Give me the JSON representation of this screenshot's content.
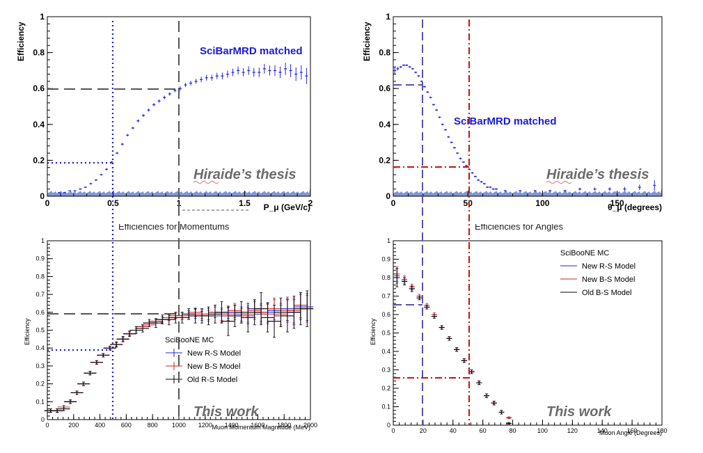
{
  "chart_data": [
    {
      "id": "top_momentum",
      "type": "scatter",
      "title": "",
      "xlabel": "P_μ (GeV/c)",
      "ylabel": "Efficiency",
      "xlim": [
        0,
        2
      ],
      "ylim": [
        0,
        1
      ],
      "xticks": [
        "0",
        "0.5",
        "1",
        "1.5",
        "2"
      ],
      "yticks": [
        "0",
        "0.2",
        "0.4",
        "0.6",
        "0.8",
        "1"
      ],
      "legend": "SciBarMRD matched",
      "legend_color": "#1a1adc",
      "watermark": "Hiraide’s thesis",
      "caption": "Efficiencies for Momentums",
      "series": [
        {
          "name": "SciBarMRD matched",
          "color": "#2222ee",
          "x": [
            0.09,
            0.13,
            0.17,
            0.21,
            0.25,
            0.29,
            0.33,
            0.37,
            0.41,
            0.45,
            0.49,
            0.53,
            0.57,
            0.61,
            0.65,
            0.69,
            0.73,
            0.77,
            0.81,
            0.85,
            0.89,
            0.93,
            0.97,
            1.01,
            1.05,
            1.09,
            1.13,
            1.17,
            1.21,
            1.25,
            1.29,
            1.33,
            1.37,
            1.41,
            1.45,
            1.49,
            1.53,
            1.57,
            1.61,
            1.65,
            1.69,
            1.73,
            1.77,
            1.81,
            1.85,
            1.89,
            1.93,
            1.97
          ],
          "y": [
            0.02,
            0.02,
            0.03,
            0.03,
            0.04,
            0.05,
            0.07,
            0.09,
            0.12,
            0.15,
            0.19,
            0.24,
            0.29,
            0.34,
            0.38,
            0.42,
            0.45,
            0.48,
            0.51,
            0.53,
            0.55,
            0.57,
            0.59,
            0.6,
            0.62,
            0.63,
            0.64,
            0.65,
            0.66,
            0.66,
            0.67,
            0.67,
            0.68,
            0.69,
            0.7,
            0.69,
            0.7,
            0.69,
            0.69,
            0.71,
            0.7,
            0.7,
            0.69,
            0.71,
            0.7,
            0.68,
            0.69,
            0.67
          ],
          "err": [
            0.003,
            0.003,
            0.003,
            0.004,
            0.004,
            0.004,
            0.005,
            0.005,
            0.005,
            0.006,
            0.006,
            0.006,
            0.007,
            0.007,
            0.007,
            0.008,
            0.008,
            0.008,
            0.009,
            0.009,
            0.01,
            0.01,
            0.011,
            0.012,
            0.012,
            0.013,
            0.014,
            0.015,
            0.016,
            0.017,
            0.018,
            0.019,
            0.02,
            0.021,
            0.022,
            0.023,
            0.024,
            0.025,
            0.026,
            0.027,
            0.028,
            0.03,
            0.032,
            0.034,
            0.036,
            0.038,
            0.04,
            0.045
          ]
        }
      ]
    },
    {
      "id": "top_angle",
      "type": "scatter",
      "title": "",
      "xlabel": "θ_μ (degrees)",
      "ylabel": "Efficiency",
      "xlim": [
        0,
        180
      ],
      "ylim": [
        0,
        1
      ],
      "xticks": [
        "0",
        "50",
        "100",
        "150"
      ],
      "yticks": [
        "0",
        "0.2",
        "0.4",
        "0.6",
        "0.8",
        "1"
      ],
      "legend": "SciBarMRD matched",
      "legend_color": "#1a1adc",
      "watermark": "Hiraide’s thesis",
      "caption": "Efficiencies for Angles",
      "series": [
        {
          "name": "SciBarMRD matched",
          "color": "#2222ee",
          "x": [
            1,
            3,
            5,
            7,
            9,
            11,
            13,
            15,
            17,
            19,
            21,
            23,
            25,
            27,
            29,
            31,
            33,
            35,
            37,
            39,
            41,
            43,
            45,
            47,
            49,
            51,
            53,
            55,
            57,
            59,
            61,
            63,
            65,
            67,
            69,
            75,
            85,
            95,
            105,
            115,
            125,
            135,
            145,
            155,
            165,
            175
          ],
          "y": [
            0.7,
            0.71,
            0.72,
            0.73,
            0.73,
            0.72,
            0.71,
            0.69,
            0.67,
            0.64,
            0.61,
            0.58,
            0.55,
            0.51,
            0.48,
            0.44,
            0.4,
            0.37,
            0.33,
            0.3,
            0.27,
            0.24,
            0.21,
            0.19,
            0.17,
            0.15,
            0.13,
            0.11,
            0.09,
            0.08,
            0.07,
            0.05,
            0.05,
            0.04,
            0.04,
            0.03,
            0.03,
            0.03,
            0.03,
            0.03,
            0.04,
            0.04,
            0.04,
            0.04,
            0.05,
            0.06
          ],
          "err": [
            0.02,
            0.01,
            0.006,
            0.005,
            0.005,
            0.005,
            0.005,
            0.005,
            0.005,
            0.005,
            0.005,
            0.005,
            0.005,
            0.005,
            0.005,
            0.005,
            0.005,
            0.005,
            0.005,
            0.005,
            0.005,
            0.005,
            0.005,
            0.005,
            0.005,
            0.005,
            0.005,
            0.005,
            0.005,
            0.005,
            0.005,
            0.005,
            0.005,
            0.005,
            0.005,
            0.005,
            0.005,
            0.005,
            0.006,
            0.006,
            0.008,
            0.008,
            0.01,
            0.012,
            0.015,
            0.03
          ]
        }
      ]
    },
    {
      "id": "bottom_momentum",
      "type": "scatter",
      "title": "",
      "xlabel": "Muon Momentum Magnitude (MeV)",
      "ylabel": "Efficiency",
      "xlim": [
        0,
        2000
      ],
      "ylim": [
        0,
        1
      ],
      "xticks": [
        "0",
        "200",
        "400",
        "600",
        "800",
        "1000",
        "1200",
        "1400",
        "1600",
        "1800",
        "2000"
      ],
      "yticks": [
        "0",
        "0.1",
        "0.2",
        "0.3",
        "0.4",
        "0.5",
        "0.6",
        "0.7",
        "0.8",
        "0.9",
        "1"
      ],
      "legend_title": "SciBooNE MC",
      "watermark": "This work",
      "series": [
        {
          "name": "New R-S Model",
          "color": "#2626d0",
          "x": [
            25,
            75,
            125,
            175,
            225,
            275,
            325,
            375,
            425,
            475,
            525,
            575,
            625,
            675,
            725,
            775,
            825,
            875,
            925,
            975,
            1025,
            1075,
            1125,
            1175,
            1225,
            1275,
            1325,
            1375,
            1425,
            1475,
            1525,
            1575,
            1625,
            1675,
            1725,
            1775,
            1825,
            1875,
            1925,
            1975
          ],
          "y": [
            0.05,
            0.05,
            0.07,
            0.1,
            0.15,
            0.2,
            0.26,
            0.32,
            0.36,
            0.4,
            0.42,
            0.45,
            0.48,
            0.5,
            0.52,
            0.54,
            0.55,
            0.56,
            0.57,
            0.58,
            0.58,
            0.59,
            0.59,
            0.58,
            0.59,
            0.6,
            0.58,
            0.6,
            0.6,
            0.59,
            0.58,
            0.62,
            0.59,
            0.6,
            0.61,
            0.58,
            0.62,
            0.6,
            0.63,
            0.63
          ],
          "err": [
            0.01,
            0.01,
            0.01,
            0.01,
            0.01,
            0.01,
            0.01,
            0.01,
            0.01,
            0.01,
            0.01,
            0.01,
            0.01,
            0.01,
            0.01,
            0.01,
            0.01,
            0.015,
            0.015,
            0.015,
            0.02,
            0.02,
            0.025,
            0.025,
            0.03,
            0.03,
            0.035,
            0.035,
            0.04,
            0.04,
            0.045,
            0.05,
            0.05,
            0.055,
            0.06,
            0.06,
            0.065,
            0.07,
            0.07,
            0.075
          ]
        },
        {
          "name": "New B-S Model",
          "color": "#d02020",
          "x": [
            25,
            75,
            125,
            175,
            225,
            275,
            325,
            375,
            425,
            475,
            525,
            575,
            625,
            675,
            725,
            775,
            825,
            875,
            925,
            975,
            1025,
            1075,
            1125,
            1175,
            1225,
            1275,
            1325,
            1375,
            1425,
            1475,
            1525,
            1575,
            1625,
            1675,
            1725,
            1775,
            1825,
            1875,
            1925,
            1975
          ],
          "y": [
            0.05,
            0.05,
            0.07,
            0.1,
            0.15,
            0.2,
            0.26,
            0.32,
            0.36,
            0.4,
            0.42,
            0.45,
            0.48,
            0.5,
            0.52,
            0.53,
            0.55,
            0.56,
            0.57,
            0.58,
            0.58,
            0.58,
            0.6,
            0.59,
            0.58,
            0.6,
            0.59,
            0.59,
            0.61,
            0.58,
            0.59,
            0.61,
            0.6,
            0.59,
            0.62,
            0.59,
            0.61,
            0.61,
            0.64,
            0.62
          ],
          "err": [
            0.01,
            0.01,
            0.01,
            0.01,
            0.01,
            0.01,
            0.01,
            0.01,
            0.01,
            0.01,
            0.01,
            0.01,
            0.01,
            0.01,
            0.01,
            0.01,
            0.01,
            0.015,
            0.015,
            0.015,
            0.02,
            0.02,
            0.025,
            0.025,
            0.03,
            0.03,
            0.035,
            0.035,
            0.04,
            0.04,
            0.045,
            0.05,
            0.05,
            0.055,
            0.06,
            0.06,
            0.065,
            0.07,
            0.07,
            0.075
          ]
        },
        {
          "name": "Old R-S Model",
          "color": "#000000",
          "x": [
            25,
            75,
            125,
            175,
            225,
            275,
            325,
            375,
            425,
            475,
            525,
            575,
            625,
            675,
            725,
            775,
            825,
            875,
            925,
            975,
            1025,
            1075,
            1125,
            1175,
            1225,
            1275,
            1325,
            1375,
            1425,
            1475,
            1525,
            1575,
            1625,
            1675,
            1725,
            1775,
            1825,
            1875,
            1925,
            1975
          ],
          "y": [
            0.05,
            0.05,
            0.06,
            0.1,
            0.15,
            0.2,
            0.26,
            0.32,
            0.36,
            0.4,
            0.42,
            0.45,
            0.48,
            0.5,
            0.51,
            0.54,
            0.54,
            0.56,
            0.56,
            0.57,
            0.57,
            0.59,
            0.58,
            0.58,
            0.58,
            0.59,
            0.6,
            0.55,
            0.58,
            0.6,
            0.57,
            0.6,
            0.62,
            0.57,
            0.55,
            0.6,
            0.58,
            0.6,
            0.62,
            0.62
          ],
          "err": [
            0.01,
            0.01,
            0.01,
            0.01,
            0.01,
            0.01,
            0.01,
            0.01,
            0.01,
            0.01,
            0.015,
            0.015,
            0.015,
            0.02,
            0.02,
            0.02,
            0.025,
            0.025,
            0.03,
            0.03,
            0.03,
            0.03,
            0.04,
            0.04,
            0.05,
            0.05,
            0.06,
            0.08,
            0.06,
            0.06,
            0.08,
            0.07,
            0.09,
            0.08,
            0.09,
            0.08,
            0.09,
            0.09,
            0.09,
            0.1
          ]
        }
      ]
    },
    {
      "id": "bottom_angle",
      "type": "scatter",
      "title": "",
      "xlabel": "Muon Angle (Degrees)",
      "ylabel": "Efficiency",
      "xlim": [
        0,
        180
      ],
      "ylim": [
        0,
        1
      ],
      "xticks": [
        "0",
        "20",
        "40",
        "60",
        "80",
        "100",
        "120",
        "140",
        "160",
        "180"
      ],
      "yticks": [
        "0",
        "0.1",
        "0.2",
        "0.3",
        "0.4",
        "0.5",
        "0.6",
        "0.7",
        "0.8",
        "0.9",
        "1"
      ],
      "legend_title": "SciBooNE MC",
      "watermark": "This work",
      "series": [
        {
          "name": "New R-S Model",
          "color": "#2626d0",
          "x": [
            2.5,
            7.5,
            12.5,
            17.5,
            22.5,
            27.5,
            32.5,
            37.5,
            42.5,
            47.5,
            52.5,
            57.5,
            62.5,
            67.5,
            72.5,
            77.5
          ],
          "y": [
            0.81,
            0.78,
            0.74,
            0.69,
            0.64,
            0.59,
            0.53,
            0.47,
            0.41,
            0.35,
            0.29,
            0.23,
            0.16,
            0.12,
            0.07,
            0.04
          ],
          "err": [
            0.04,
            0.02,
            0.015,
            0.01,
            0.01,
            0.01,
            0.01,
            0.01,
            0.01,
            0.01,
            0.01,
            0.01,
            0.01,
            0.01,
            0.01,
            0.005
          ]
        },
        {
          "name": "New B-S Model",
          "color": "#d02020",
          "x": [
            2.5,
            7.5,
            12.5,
            17.5,
            22.5,
            27.5,
            32.5,
            37.5,
            42.5,
            47.5,
            52.5,
            57.5,
            62.5,
            67.5,
            72.5,
            77.5
          ],
          "y": [
            0.82,
            0.79,
            0.75,
            0.7,
            0.65,
            0.6,
            0.53,
            0.47,
            0.41,
            0.35,
            0.29,
            0.23,
            0.16,
            0.12,
            0.07,
            0.04
          ],
          "err": [
            0.04,
            0.02,
            0.015,
            0.01,
            0.01,
            0.01,
            0.01,
            0.01,
            0.01,
            0.01,
            0.01,
            0.01,
            0.01,
            0.01,
            0.01,
            0.005
          ]
        },
        {
          "name": "Old B-S Model",
          "color": "#000000",
          "x": [
            2.5,
            7.5,
            12.5,
            17.5,
            22.5,
            27.5,
            32.5,
            37.5,
            42.5,
            47.5,
            52.5,
            57.5,
            62.5,
            67.5,
            72.5,
            77.5
          ],
          "y": [
            0.8,
            0.78,
            0.74,
            0.69,
            0.64,
            0.59,
            0.53,
            0.47,
            0.41,
            0.35,
            0.29,
            0.23,
            0.16,
            0.12,
            0.07,
            0.01
          ],
          "err": [
            0.05,
            0.02,
            0.015,
            0.01,
            0.01,
            0.01,
            0.01,
            0.01,
            0.01,
            0.01,
            0.01,
            0.01,
            0.01,
            0.01,
            0.01,
            0.005
          ]
        }
      ]
    }
  ]
}
